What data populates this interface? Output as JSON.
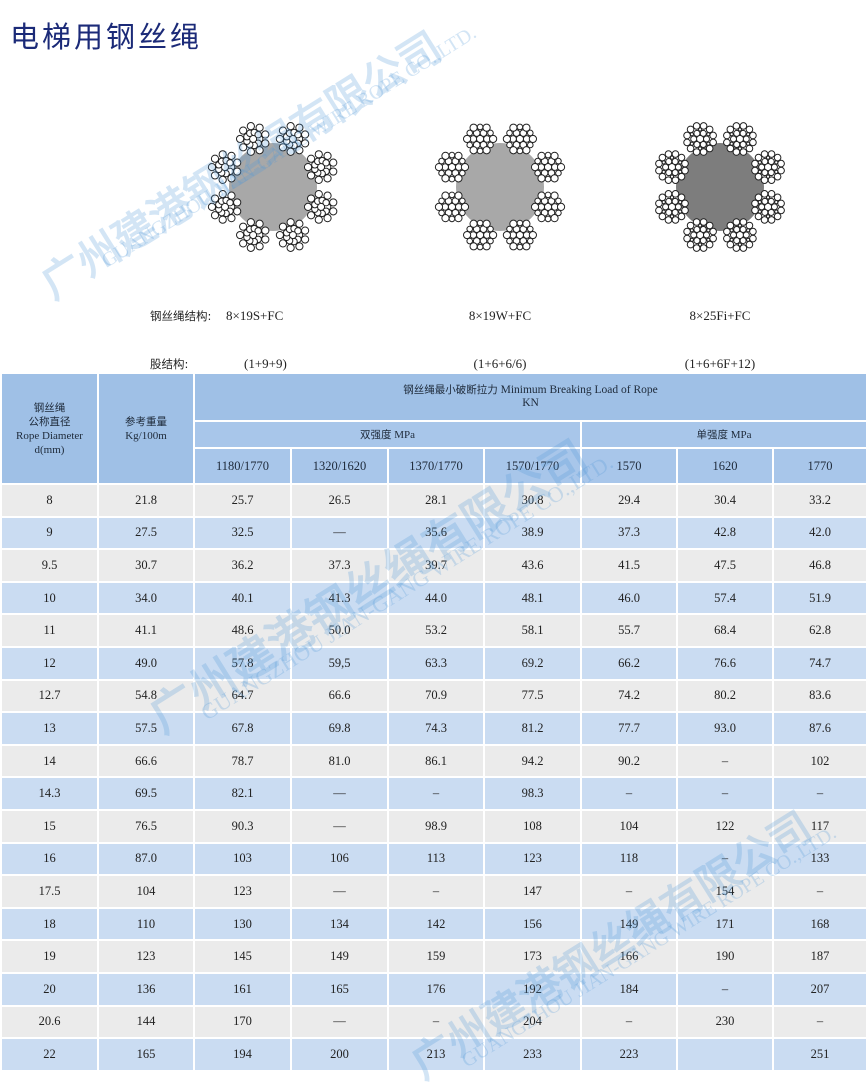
{
  "title": "电梯用钢丝绳",
  "watermark": {
    "cn": "广州建港钢丝绳有限公司",
    "en": "GUANGZHOU JIAN-GANG WIRE ROPE CO.,LTD."
  },
  "ropes": [
    {
      "label_structure": "钢丝绳结构:",
      "structure": "8×19S+FC",
      "label_strand": "股结构:",
      "strand": "(1+9+9)",
      "type": "seale",
      "core_color": "#a8a8a8"
    },
    {
      "structure": "8×19W+FC",
      "strand": "(1+6+6/6)",
      "type": "warrington",
      "core_color": "#a8a8a8"
    },
    {
      "structure": "8×25Fi+FC",
      "strand": "(1+6+6F+12)",
      "type": "filler",
      "core_color": "#7d7d7d"
    }
  ],
  "table": {
    "col_diameter": [
      "钢丝绳",
      "公称直径",
      "Rope Diameter",
      "d(mm)"
    ],
    "col_weight": [
      "参考重量",
      "Kg/100m"
    ],
    "group_title_cn": "钢丝绳最小破断拉力",
    "group_title_en": "Minimum Breaking Load of Rope",
    "group_unit": "KN",
    "dual_label": "双强度",
    "single_label": "单强度",
    "mpa": "MPa",
    "grades": [
      "1180/1770",
      "1320/1620",
      "1370/1770",
      "1570/1770",
      "1570",
      "1620",
      "1770"
    ],
    "rows": [
      [
        "8",
        "21.8",
        "25.7",
        "26.5",
        "28.1",
        "30.8",
        "29.4",
        "30.4",
        "33.2"
      ],
      [
        "9",
        "27.5",
        "32.5",
        "—",
        "35.6",
        "38.9",
        "37.3",
        "42.8",
        "42.0"
      ],
      [
        "9.5",
        "30.7",
        "36.2",
        "37.3",
        "39.7",
        "43.6",
        "41.5",
        "47.5",
        "46.8"
      ],
      [
        "10",
        "34.0",
        "40.1",
        "41.3",
        "44.0",
        "48.1",
        "46.0",
        "57.4",
        "51.9"
      ],
      [
        "11",
        "41.1",
        "48.6",
        "50.0",
        "53.2",
        "58.1",
        "55.7",
        "68.4",
        "62.8"
      ],
      [
        "12",
        "49.0",
        "57.8",
        "59,5",
        "63.3",
        "69.2",
        "66.2",
        "76.6",
        "74.7"
      ],
      [
        "12.7",
        "54.8",
        "64.7",
        "66.6",
        "70.9",
        "77.5",
        "74.2",
        "80.2",
        "83.6"
      ],
      [
        "13",
        "57.5",
        "67.8",
        "69.8",
        "74.3",
        "81.2",
        "77.7",
        "93.0",
        "87.6"
      ],
      [
        "14",
        "66.6",
        "78.7",
        "81.0",
        "86.1",
        "94.2",
        "90.2",
        "–",
        "102"
      ],
      [
        "14.3",
        "69.5",
        "82.1",
        "—",
        "–",
        "98.3",
        "–",
        "–",
        "–"
      ],
      [
        "15",
        "76.5",
        "90.3",
        "—",
        "98.9",
        "108",
        "104",
        "122",
        "117"
      ],
      [
        "16",
        "87.0",
        "103",
        "106",
        "113",
        "123",
        "118",
        "–",
        "133"
      ],
      [
        "17.5",
        "104",
        "123",
        "—",
        "–",
        "147",
        "–",
        "154",
        "–"
      ],
      [
        "18",
        "110",
        "130",
        "134",
        "142",
        "156",
        "149",
        "171",
        "168"
      ],
      [
        "19",
        "123",
        "145",
        "149",
        "159",
        "173",
        "166",
        "190",
        "187"
      ],
      [
        "20",
        "136",
        "161",
        "165",
        "176",
        "192",
        "184",
        "–",
        "207"
      ],
      [
        "20.6",
        "144",
        "170",
        "—",
        "–",
        "204",
        "–",
        "230",
        "–"
      ],
      [
        "22",
        "165",
        "194",
        "200",
        "213",
        "233",
        "223",
        "",
        "251"
      ]
    ]
  }
}
